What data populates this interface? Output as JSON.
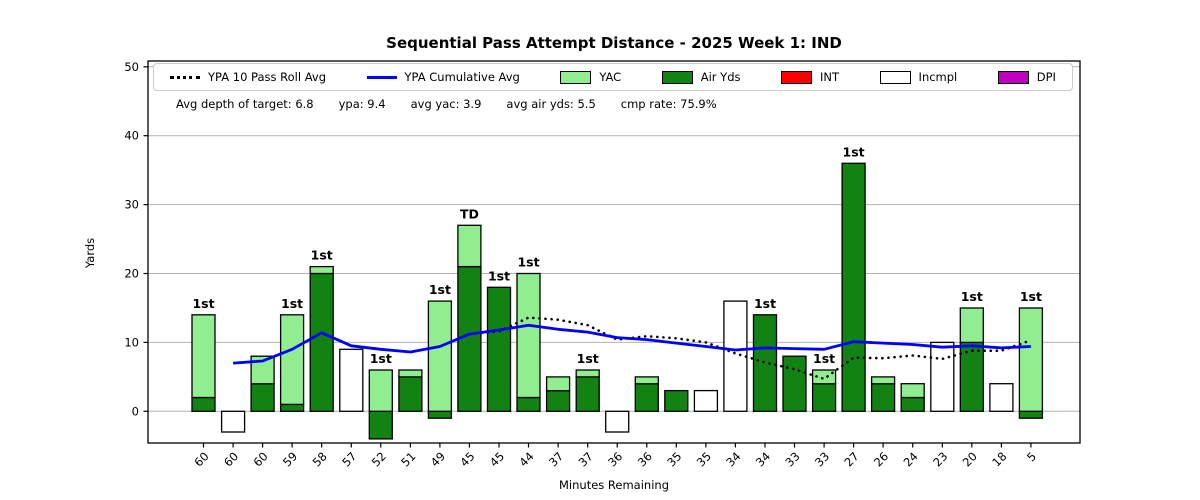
{
  "title": "Sequential Pass Attempt Distance - 2025 Week 1: IND",
  "stats": [
    "Avg depth of target: 6.8",
    "ypa: 9.4",
    "avg yac: 3.9",
    "avg air yds: 5.5",
    "cmp rate: 75.9%"
  ],
  "colors": {
    "yac": "#90EE90",
    "air_yds": "#128212",
    "int": "#FF0000",
    "incomplete": "#FFFFFF",
    "dpi": "#BF00BF",
    "cumulative_line": "#0000FF",
    "rolling_line": "#000000",
    "grid": "#b3b3b3"
  },
  "legend": {
    "items": [
      {
        "label": "YPA 10 Pass Roll Avg",
        "swatch": "dotted-line",
        "color": "#000000"
      },
      {
        "label": "YPA Cumulative Avg",
        "swatch": "solid-line",
        "color": "#0000FF"
      },
      {
        "label": "YAC",
        "swatch": "patch",
        "color": "#90EE90"
      },
      {
        "label": "Air Yds",
        "swatch": "patch",
        "color": "#128212"
      },
      {
        "label": "INT",
        "swatch": "patch",
        "color": "#FF0000"
      },
      {
        "label": "Incmpl",
        "swatch": "patch",
        "color": "#FFFFFF"
      },
      {
        "label": "DPI",
        "swatch": "patch",
        "color": "#BF00BF"
      }
    ]
  },
  "chart_data": {
    "type": "bar",
    "title": "Sequential Pass Attempt Distance - 2025 Week 1: IND",
    "xlabel": "Minutes Remaining",
    "ylabel": "Yards",
    "ylim": [
      -4.6,
      50.8
    ],
    "yticks": [
      0,
      10,
      20,
      30,
      40,
      50
    ],
    "grid": true,
    "legend_position": "top",
    "categories": [
      "60",
      "60",
      "60",
      "59",
      "58",
      "57",
      "52",
      "51",
      "49",
      "45",
      "45",
      "44",
      "37",
      "37",
      "36",
      "36",
      "35",
      "35",
      "34",
      "34",
      "33",
      "33",
      "27",
      "26",
      "24",
      "23",
      "20",
      "18",
      "5"
    ],
    "bars": [
      {
        "minutes": "60",
        "air_yds": 2,
        "yac": 12,
        "result": "complete",
        "label": "1st"
      },
      {
        "minutes": "60",
        "air_yds": -3,
        "yac": 0,
        "result": "incomplete",
        "label": ""
      },
      {
        "minutes": "60",
        "air_yds": 4,
        "yac": 4,
        "result": "complete",
        "label": ""
      },
      {
        "minutes": "59",
        "air_yds": 1,
        "yac": 13,
        "result": "complete",
        "label": "1st"
      },
      {
        "minutes": "58",
        "air_yds": 20,
        "yac": 1,
        "result": "complete",
        "label": "1st"
      },
      {
        "minutes": "57",
        "air_yds": 9,
        "yac": 0,
        "result": "incomplete",
        "label": ""
      },
      {
        "minutes": "52",
        "air_yds": -4,
        "yac": 10,
        "result": "complete",
        "label": "1st"
      },
      {
        "minutes": "51",
        "air_yds": 5,
        "yac": 1,
        "result": "complete",
        "label": ""
      },
      {
        "minutes": "49",
        "air_yds": -1,
        "yac": 17,
        "result": "complete",
        "label": "1st"
      },
      {
        "minutes": "45",
        "air_yds": 21,
        "yac": 6,
        "result": "complete",
        "label": "TD"
      },
      {
        "minutes": "45",
        "air_yds": 18,
        "yac": 0,
        "result": "complete",
        "label": "1st"
      },
      {
        "minutes": "44",
        "air_yds": 2,
        "yac": 18,
        "result": "complete",
        "label": "1st"
      },
      {
        "minutes": "37",
        "air_yds": 3,
        "yac": 2,
        "result": "complete",
        "label": ""
      },
      {
        "minutes": "37",
        "air_yds": 5,
        "yac": 1,
        "result": "complete",
        "label": "1st"
      },
      {
        "minutes": "36",
        "air_yds": -3,
        "yac": 0,
        "result": "incomplete",
        "label": ""
      },
      {
        "minutes": "36",
        "air_yds": 4,
        "yac": 1,
        "result": "complete",
        "label": ""
      },
      {
        "minutes": "35",
        "air_yds": 3,
        "yac": 0,
        "result": "complete",
        "label": ""
      },
      {
        "minutes": "35",
        "air_yds": 3,
        "yac": 0,
        "result": "incomplete",
        "label": ""
      },
      {
        "minutes": "34",
        "air_yds": 16,
        "yac": 0,
        "result": "incomplete",
        "label": ""
      },
      {
        "minutes": "34",
        "air_yds": 14,
        "yac": 0,
        "result": "complete",
        "label": "1st"
      },
      {
        "minutes": "33",
        "air_yds": 8,
        "yac": 0,
        "result": "complete",
        "label": ""
      },
      {
        "minutes": "33",
        "air_yds": 4,
        "yac": 2,
        "result": "complete",
        "label": "1st"
      },
      {
        "minutes": "27",
        "air_yds": 36,
        "yac": 0,
        "result": "complete",
        "label": "1st"
      },
      {
        "minutes": "26",
        "air_yds": 4,
        "yac": 1,
        "result": "complete",
        "label": ""
      },
      {
        "minutes": "24",
        "air_yds": 2,
        "yac": 2,
        "result": "complete",
        "label": ""
      },
      {
        "minutes": "23",
        "air_yds": 10,
        "yac": 0,
        "result": "incomplete",
        "label": ""
      },
      {
        "minutes": "20",
        "air_yds": 10,
        "yac": 5,
        "result": "complete",
        "label": "1st"
      },
      {
        "minutes": "18",
        "air_yds": 4,
        "yac": 0,
        "result": "incomplete",
        "label": ""
      },
      {
        "minutes": "5",
        "air_yds": -1,
        "yac": 16,
        "result": "complete",
        "label": "1st"
      }
    ],
    "series": [
      {
        "name": "YPA 10 Pass Roll Avg",
        "key": "rolling-avg-line",
        "style": "dotted",
        "color": "#000000",
        "start_index": 9,
        "values": [
          11.2,
          11.6,
          13.6,
          13.3,
          12.5,
          10.4,
          10.9,
          10.6,
          10.0,
          8.4,
          7.1,
          6.1,
          4.7,
          7.8,
          7.7,
          8.1,
          7.6,
          8.8,
          8.8,
          10.3
        ]
      },
      {
        "name": "YPA Cumulative Avg",
        "key": "cumulative-avg-line",
        "style": "solid",
        "color": "#0000FF",
        "start_index": 1,
        "values": [
          7.0,
          7.3,
          9.0,
          11.4,
          9.5,
          9.0,
          8.6,
          9.4,
          11.2,
          11.8,
          12.5,
          11.9,
          11.5,
          10.7,
          10.4,
          9.9,
          9.4,
          8.9,
          9.2,
          9.1,
          9.0,
          10.1,
          9.9,
          9.7,
          9.3,
          9.5,
          9.2,
          9.4
        ]
      }
    ]
  }
}
